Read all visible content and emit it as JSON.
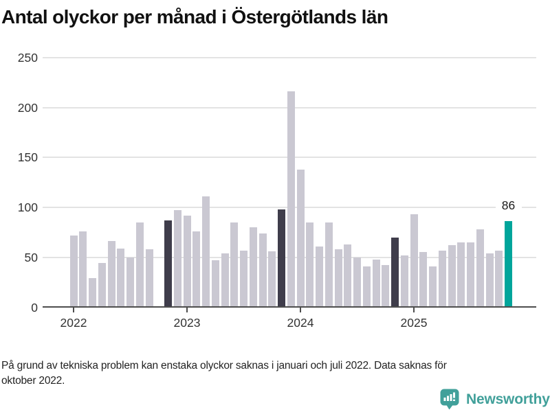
{
  "title": "Antal olyckor per månad i Östergötlands län",
  "footnote": "På grund av tekniska problem kan enstaka olyckor saknas i januari och juli 2022. Data saknas för\noktober 2022.",
  "branding": {
    "name": "Newsworthy",
    "color": "#41a09a"
  },
  "colors": {
    "bar_default": "#cac8d2",
    "bar_highlight": "#3f3d4b",
    "bar_current": "#00a59b",
    "axis": "#4d4d4d",
    "grid": "#e3e3e3",
    "tick_text": "#333333",
    "title_text": "#111111",
    "note_text": "#222222"
  },
  "chart_data": {
    "type": "bar",
    "title": "Antal olyckor per månad i Östergötlands län",
    "xlabel": "",
    "ylabel": "",
    "ylim": [
      0,
      250
    ],
    "y_ticks": [
      0,
      50,
      100,
      150,
      200,
      250
    ],
    "grid": "horizontal",
    "x": [
      "2022-01",
      "2022-02",
      "2022-03",
      "2022-04",
      "2022-05",
      "2022-06",
      "2022-07",
      "2022-08",
      "2022-09",
      "2022-10",
      "2022-11",
      "2022-12",
      "2023-01",
      "2023-02",
      "2023-03",
      "2023-04",
      "2023-05",
      "2023-06",
      "2023-07",
      "2023-08",
      "2023-09",
      "2023-10",
      "2023-11",
      "2023-12",
      "2024-01",
      "2024-02",
      "2024-03",
      "2024-04",
      "2024-05",
      "2024-06",
      "2024-07",
      "2024-08",
      "2024-09",
      "2024-10",
      "2024-11",
      "2024-12",
      "2025-01",
      "2025-02",
      "2025-03",
      "2025-04",
      "2025-05",
      "2025-06",
      "2025-07",
      "2025-08",
      "2025-09",
      "2025-10",
      "2025-11"
    ],
    "values": [
      72,
      76,
      29,
      44,
      66,
      59,
      50,
      85,
      58,
      null,
      87,
      97,
      92,
      76,
      111,
      47,
      54,
      85,
      57,
      80,
      74,
      56,
      98,
      216,
      138,
      85,
      61,
      85,
      58,
      63,
      50,
      41,
      48,
      42,
      70,
      52,
      93,
      55,
      41,
      57,
      62,
      65,
      65,
      78,
      54,
      57,
      86
    ],
    "missing_months": [
      "2022-10"
    ],
    "highlight_months": [
      "2022-11",
      "2023-11",
      "2024-11"
    ],
    "current_month": "2025-11",
    "annotation": {
      "text": "86",
      "month": "2025-11",
      "value": 86
    },
    "x_tick_labels": [
      "2022",
      "2023",
      "2024",
      "2025"
    ],
    "x_tick_months": [
      "2022-01",
      "2023-01",
      "2024-01",
      "2025-01"
    ],
    "legend": "none"
  }
}
